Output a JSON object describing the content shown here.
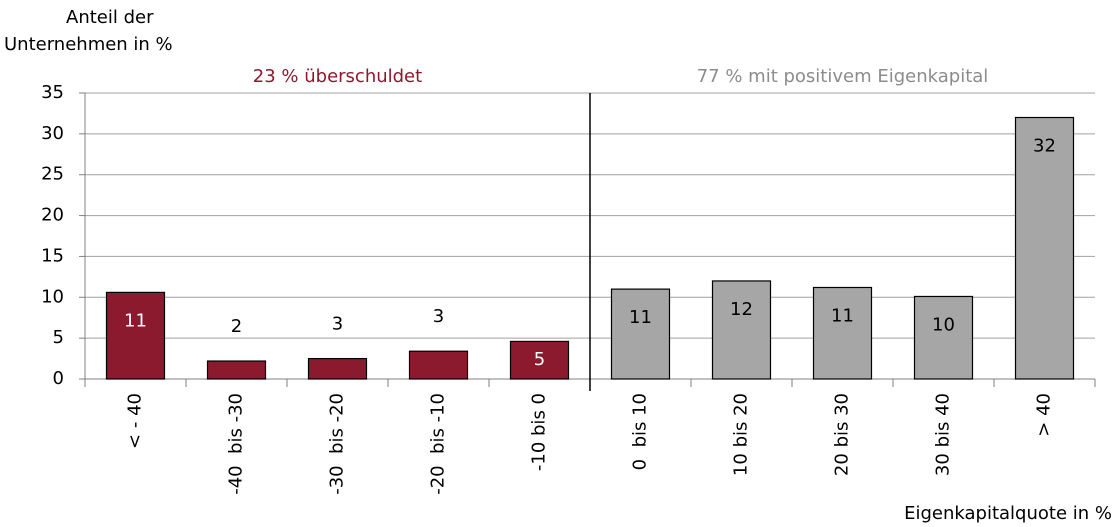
{
  "chart_data": {
    "type": "bar",
    "y_label": [
      "Anteil der",
      "Unternehmen in %"
    ],
    "x_label": "Eigenkapitalquote in %",
    "annotations": [
      {
        "text": "23 % überschuldet",
        "color": "#8b1a2e"
      },
      {
        "text": "77 % mit positivem Eigenkapital",
        "color": "#8c8c8c"
      }
    ],
    "categories": [
      "< - 40",
      "-40  bis -30",
      "-30  bis -20",
      "-20  bis -10",
      "-10 bis 0",
      "0  bis 10",
      "10 bis 20",
      "20 bis 30",
      "30 bis 40",
      "> 40"
    ],
    "values": [
      10.6,
      2.2,
      2.5,
      3.4,
      4.6,
      11.0,
      12.0,
      11.2,
      10.1,
      32.0
    ],
    "value_labels": [
      "11",
      "2",
      "3",
      "3",
      "5",
      "11",
      "12",
      "11",
      "10",
      "32"
    ],
    "colors": [
      "#8b1a2e",
      "#8b1a2e",
      "#8b1a2e",
      "#8b1a2e",
      "#8b1a2e",
      "#a6a6a6",
      "#a6a6a6",
      "#a6a6a6",
      "#a6a6a6",
      "#a6a6a6"
    ],
    "ylim": [
      0,
      35
    ],
    "yticks": [
      0,
      5,
      10,
      15,
      20,
      25,
      30,
      35
    ],
    "grid": true
  }
}
